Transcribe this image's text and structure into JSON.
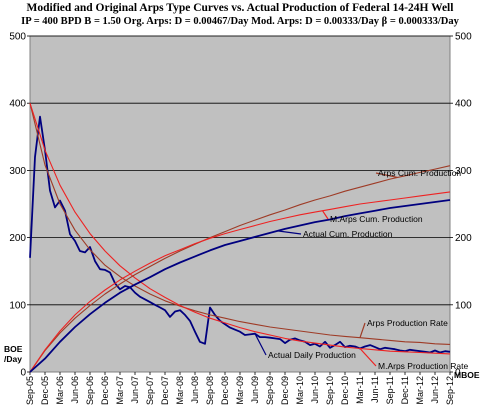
{
  "chart_data": {
    "type": "line",
    "title": "Modified and Original Arps Type Curves vs. Actual Production of Federal 14-24H Well",
    "subtitle": "IP = 400 BPD B = 1.50  Org. Arps: D = 0.00467/Day  Mod. Arps: D = 0.00333/Day  β = 0.000333/Day",
    "ylabel_left": "BOE\n/Day",
    "ylabel_right": "MBOE",
    "ylim": [
      0,
      500
    ],
    "yticks": [
      "0",
      "100",
      "200",
      "300",
      "400",
      "500"
    ],
    "x_categories": [
      "Sep-05",
      "Dec-05",
      "Mar-06",
      "Jun-06",
      "Sep-06",
      "Dec-06",
      "Mar-07",
      "Jun-07",
      "Sep-07",
      "Dec-07",
      "Mar-08",
      "Jun-08",
      "Sep-08",
      "Dec-08",
      "Mar-09",
      "Jun-09",
      "Sep-09",
      "Dec-09",
      "Mar-10",
      "Jun-10",
      "Sep-10",
      "Dec-10",
      "Mar-11",
      "Jun-11",
      "Sep-11",
      "Dec-11",
      "Mar-12",
      "Jun-12",
      "Sep-12"
    ],
    "grid": "horizontal",
    "series": [
      {
        "name": "Actual Daily Production",
        "color": "#00007f",
        "x": [
          0,
          0.33,
          0.67,
          1,
          1.33,
          1.67,
          2,
          2.33,
          2.67,
          3,
          3.33,
          3.67,
          4,
          4.33,
          4.67,
          5,
          5.33,
          5.67,
          6,
          6.33,
          6.67,
          7,
          7.33,
          7.67,
          8,
          8.33,
          8.67,
          9,
          9.33,
          9.67,
          10,
          10.33,
          10.67,
          11,
          11.33,
          11.67,
          12,
          12.33,
          12.67,
          13,
          13.33,
          13.67,
          14,
          14.33,
          14.67,
          15,
          15.33,
          15.67,
          16,
          16.33,
          16.67,
          17,
          17.33,
          17.67,
          18,
          18.33,
          18.67,
          19,
          19.33,
          19.67,
          20,
          20.33,
          20.67,
          21,
          21.33,
          21.67,
          22,
          22.33,
          22.67,
          23,
          23.33,
          23.67,
          24,
          24.33,
          24.67,
          25,
          25.33,
          25.67,
          26,
          26.33,
          26.67,
          27,
          27.33,
          27.67,
          28
        ],
        "values": [
          170,
          320,
          380,
          330,
          270,
          245,
          255,
          240,
          205,
          195,
          180,
          178,
          186,
          165,
          153,
          152,
          148,
          132,
          123,
          128,
          126,
          118,
          112,
          108,
          104,
          100,
          96,
          92,
          82,
          90,
          92,
          85,
          76,
          60,
          45,
          42,
          96,
          85,
          76,
          71,
          66,
          63,
          60,
          55,
          56,
          57,
          52,
          52,
          51,
          50,
          49,
          43,
          48,
          50,
          47,
          45,
          40,
          42,
          38,
          45,
          36,
          40,
          45,
          37,
          39,
          38,
          35,
          38,
          40,
          37,
          34,
          36,
          35,
          34,
          32,
          31,
          33,
          32,
          31,
          30,
          29,
          32,
          29,
          31,
          30
        ]
      },
      {
        "name": "Arps Production Rate",
        "color": "#9e3b26",
        "x": [
          0,
          1,
          2,
          3,
          4,
          5,
          6,
          7,
          8,
          9,
          10,
          11,
          12,
          13,
          14,
          15,
          16,
          17,
          18,
          19,
          20,
          21,
          22,
          23,
          24,
          25,
          26,
          27,
          28
        ],
        "values": [
          400,
          308,
          250,
          211,
          182,
          159,
          142,
          128,
          116,
          106,
          98,
          91,
          85,
          80,
          75,
          71,
          67,
          64,
          61,
          58,
          55,
          53,
          51,
          49,
          47,
          45,
          44,
          42,
          41
        ]
      },
      {
        "name": "M.Arps Production Rate",
        "color": "#ee2222",
        "x": [
          0,
          1,
          2,
          3,
          4,
          5,
          6,
          7,
          8,
          9,
          10,
          11,
          12,
          13,
          14,
          15,
          16,
          17,
          18,
          19,
          20,
          21,
          22,
          23,
          24,
          25,
          26,
          27,
          28
        ],
        "values": [
          400,
          330,
          278,
          238,
          206,
          180,
          158,
          140,
          124,
          111,
          99,
          89,
          80,
          73,
          66,
          60,
          55,
          50,
          46,
          43,
          40,
          37,
          35,
          33,
          31,
          30,
          29,
          28,
          27
        ]
      },
      {
        "name": "Arps Cum. Production",
        "color": "#9e3b26",
        "x": [
          0,
          1,
          2,
          3,
          4,
          5,
          6,
          7,
          8,
          9,
          10,
          11,
          12,
          13,
          14,
          15,
          16,
          17,
          18,
          19,
          20,
          21,
          22,
          23,
          24,
          25,
          26,
          27,
          28
        ],
        "values": [
          0,
          32,
          58,
          80,
          99,
          116,
          131,
          145,
          157,
          169,
          180,
          190,
          200,
          209,
          218,
          226,
          234,
          241,
          249,
          256,
          262,
          269,
          275,
          281,
          287,
          292,
          297,
          302,
          307
        ]
      },
      {
        "name": "M.Arps Cum. Production",
        "color": "#ee2222",
        "x": [
          0,
          1,
          2,
          3,
          4,
          5,
          6,
          7,
          8,
          9,
          10,
          11,
          12,
          13,
          14,
          15,
          16,
          17,
          18,
          19,
          20,
          21,
          22,
          23,
          24,
          25,
          26,
          27,
          28
        ],
        "values": [
          0,
          33,
          61,
          85,
          105,
          122,
          137,
          150,
          162,
          173,
          182,
          191,
          199,
          206,
          212,
          218,
          224,
          229,
          234,
          238,
          242,
          246,
          250,
          253,
          256,
          259,
          262,
          265,
          268
        ]
      },
      {
        "name": "Actual Cum. Production",
        "color": "#00007f",
        "x": [
          0,
          1,
          2,
          3,
          4,
          5,
          6,
          7,
          8,
          9,
          10,
          11,
          12,
          13,
          14,
          15,
          16,
          17,
          18,
          19,
          20,
          21,
          22,
          23,
          24,
          25,
          26,
          27,
          28
        ],
        "values": [
          0,
          20,
          45,
          67,
          86,
          103,
          118,
          130,
          141,
          153,
          163,
          172,
          181,
          189,
          195,
          201,
          207,
          213,
          218,
          223,
          227,
          232,
          236,
          240,
          244,
          247,
          250,
          253,
          256
        ]
      }
    ],
    "annotations": [
      {
        "text": "Arps Cum. Production",
        "series": "Arps Cum. Production"
      },
      {
        "text": "M.Arps Cum. Production",
        "series": "M.Arps Cum. Production"
      },
      {
        "text": "Actual Cum. Production",
        "series": "Actual Cum. Production"
      },
      {
        "text": "Arps Production Rate",
        "series": "Arps Production Rate"
      },
      {
        "text": "Actual Daily Production",
        "series": "Actual Daily Production"
      },
      {
        "text": "M.Arps Production Rate",
        "series": "M.Arps Production Rate"
      }
    ],
    "colors": {
      "plot_background": "#c0c0c0",
      "gridline": "#000000"
    }
  }
}
